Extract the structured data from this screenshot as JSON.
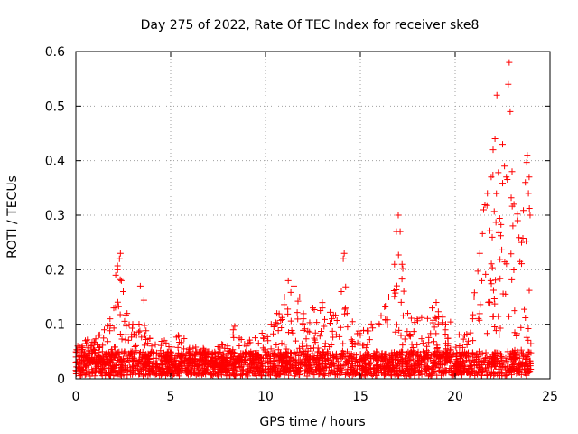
{
  "chart_data": {
    "type": "scatter",
    "title": "Day 275 of 2022, Rate Of TEC Index for receiver ske8",
    "xlabel": "GPS time / hours",
    "ylabel": "ROTI / TECUs",
    "xlim": [
      0,
      25
    ],
    "ylim": [
      0,
      0.6
    ],
    "x_ticks": [
      0,
      5,
      10,
      15,
      20,
      25
    ],
    "y_ticks": [
      0,
      0.1,
      0.2,
      0.3,
      0.4,
      0.5,
      0.6
    ],
    "x_tick_labels": [
      "0",
      "5",
      "10",
      "15",
      "20",
      "25"
    ],
    "y_tick_labels": [
      "0",
      "0.1",
      "0.2",
      "0.3",
      "0.4",
      "0.5",
      "0.6"
    ],
    "grid": true,
    "marker": "+",
    "color": "#ff0000",
    "series": [
      {
        "name": "ROTI",
        "points": [
          [
            0.1,
            0.06
          ],
          [
            0.3,
            0.05
          ],
          [
            0.5,
            0.07
          ],
          [
            0.8,
            0.06
          ],
          [
            1.2,
            0.08
          ],
          [
            1.5,
            0.09
          ],
          [
            1.8,
            0.11
          ],
          [
            2.0,
            0.13
          ],
          [
            2.1,
            0.19
          ],
          [
            2.2,
            0.2
          ],
          [
            2.3,
            0.22
          ],
          [
            2.35,
            0.23
          ],
          [
            2.4,
            0.18
          ],
          [
            2.5,
            0.16
          ],
          [
            2.7,
            0.12
          ],
          [
            3.0,
            0.1
          ],
          [
            3.4,
            0.17
          ],
          [
            3.2,
            0.08
          ],
          [
            4.0,
            0.06
          ],
          [
            5.4,
            0.08
          ],
          [
            6.0,
            0.05
          ],
          [
            7.0,
            0.05
          ],
          [
            8.0,
            0.06
          ],
          [
            8.3,
            0.09
          ],
          [
            9.0,
            0.06
          ],
          [
            10.3,
            0.1
          ],
          [
            10.6,
            0.12
          ],
          [
            11.0,
            0.15
          ],
          [
            11.2,
            0.18
          ],
          [
            11.5,
            0.17
          ],
          [
            11.8,
            0.15
          ],
          [
            12.0,
            0.11
          ],
          [
            12.5,
            0.13
          ],
          [
            13.0,
            0.13
          ],
          [
            13.5,
            0.11
          ],
          [
            14.0,
            0.16
          ],
          [
            14.1,
            0.22
          ],
          [
            14.15,
            0.23
          ],
          [
            14.3,
            0.12
          ],
          [
            15.0,
            0.08
          ],
          [
            16.0,
            0.1
          ],
          [
            16.5,
            0.15
          ],
          [
            16.8,
            0.21
          ],
          [
            16.9,
            0.27
          ],
          [
            17.0,
            0.3
          ],
          [
            17.1,
            0.27
          ],
          [
            17.2,
            0.21
          ],
          [
            17.5,
            0.12
          ],
          [
            18.0,
            0.11
          ],
          [
            19.0,
            0.14
          ],
          [
            19.5,
            0.1
          ],
          [
            20.5,
            0.08
          ],
          [
            21.0,
            0.15
          ],
          [
            21.3,
            0.23
          ],
          [
            21.5,
            0.31
          ],
          [
            21.7,
            0.34
          ],
          [
            21.9,
            0.37
          ],
          [
            22.0,
            0.42
          ],
          [
            22.1,
            0.44
          ],
          [
            22.2,
            0.52
          ],
          [
            22.5,
            0.43
          ],
          [
            22.6,
            0.39
          ],
          [
            22.7,
            0.37
          ],
          [
            22.8,
            0.54
          ],
          [
            22.85,
            0.58
          ],
          [
            22.9,
            0.49
          ],
          [
            23.0,
            0.38
          ],
          [
            23.1,
            0.32
          ],
          [
            23.3,
            0.29
          ],
          [
            23.5,
            0.25
          ],
          [
            23.7,
            0.36
          ],
          [
            23.8,
            0.41
          ],
          [
            23.9,
            0.37
          ],
          [
            23.95,
            0.3
          ]
        ]
      }
    ]
  }
}
